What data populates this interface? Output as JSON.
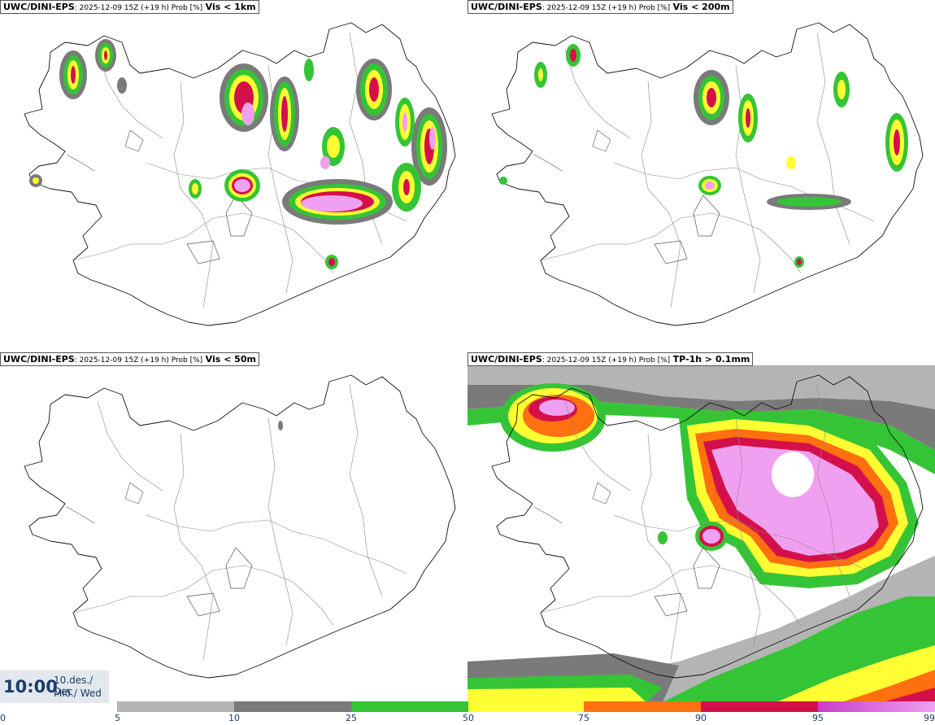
{
  "panels": [
    {
      "id": "tl",
      "model": "UWC/DINI-EPS",
      "meta": ": 2025-12-09 15Z (+19 h) Prob [%]",
      "variable": "Vis < 1km"
    },
    {
      "id": "tr",
      "model": "UWC/DINI-EPS",
      "meta": ": 2025-12-09 15Z (+19 h) Prob [%]",
      "variable": "Vis < 200m"
    },
    {
      "id": "bl",
      "model": "UWC/DINI-EPS",
      "meta": ": 2025-12-09 15Z (+19 h) Prob [%]",
      "variable": "Vis < 50m"
    },
    {
      "id": "br",
      "model": "UWC/DINI-EPS",
      "meta": ": 2025-12-09 15Z (+19 h) Prob [%]",
      "variable": "TP-1h > 0.1mm"
    }
  ],
  "time": {
    "big": "10:00",
    "line1": "10.des./ Dec",
    "line2": "Mið./ Wed"
  },
  "legend": {
    "ticks": [
      "0",
      "5",
      "10",
      "25",
      "50",
      "75",
      "90",
      "95",
      "99"
    ],
    "colors": {
      "c5": "#b4b4b4",
      "c10": "#7a7a7a",
      "c25": "#35c435",
      "c50": "#ffff33",
      "c75": "#ff7010",
      "c90": "#d4104a",
      "c95": "#c83cc8",
      "c99": "#f0a0f0"
    }
  },
  "map": {
    "coast": "#111111",
    "borders": "#888888",
    "land": "#ffffff",
    "sea": "#ffffff"
  }
}
